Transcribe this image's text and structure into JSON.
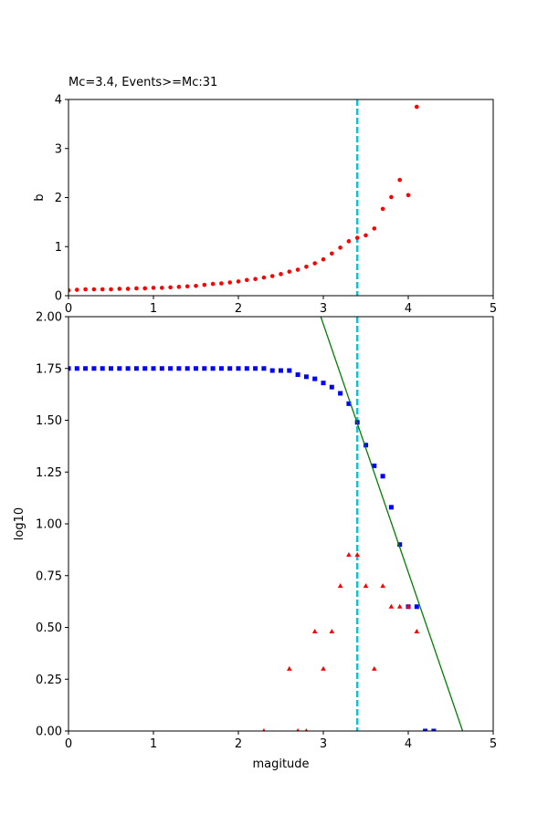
{
  "chart_data": [
    {
      "type": "scatter",
      "title": "Mc=3.4, Events>=Mc:31",
      "ylabel": "b",
      "xlim": [
        0,
        5
      ],
      "xticks": [
        0,
        1,
        2,
        3,
        4,
        5
      ],
      "ylim": [
        0,
        4
      ],
      "yticks": [
        0,
        1,
        2,
        3,
        4
      ],
      "vline": 3.4,
      "vline_color": "#17becf",
      "series": [
        {
          "marker": "circle",
          "color": "#ff0000",
          "x": [
            0,
            0.1,
            0.2,
            0.3,
            0.4,
            0.5,
            0.6,
            0.7,
            0.8,
            0.9,
            1.0,
            1.1,
            1.2,
            1.3,
            1.4,
            1.5,
            1.6,
            1.7,
            1.8,
            1.9,
            2.0,
            2.1,
            2.2,
            2.3,
            2.4,
            2.5,
            2.6,
            2.7,
            2.8,
            2.9,
            3.0,
            3.1,
            3.2,
            3.3,
            3.4,
            3.5,
            3.6,
            3.7,
            3.8,
            3.9,
            4.0,
            4.1
          ],
          "values": [
            0.11,
            0.12,
            0.13,
            0.13,
            0.13,
            0.13,
            0.14,
            0.14,
            0.15,
            0.15,
            0.16,
            0.16,
            0.17,
            0.18,
            0.19,
            0.2,
            0.22,
            0.24,
            0.25,
            0.27,
            0.29,
            0.32,
            0.34,
            0.37,
            0.4,
            0.44,
            0.49,
            0.53,
            0.59,
            0.66,
            0.74,
            0.86,
            0.98,
            1.11,
            1.18,
            1.23,
            1.37,
            1.77,
            2.01,
            2.36,
            2.05,
            3.85
          ]
        }
      ]
    },
    {
      "type": "scatter",
      "xlabel": "magitude",
      "ylabel": "log10",
      "xlim": [
        0,
        5
      ],
      "xticks": [
        0,
        1,
        2,
        3,
        4,
        5
      ],
      "ylim": [
        0,
        2
      ],
      "yticks": [
        {
          "value": 0,
          "label": "0.00"
        },
        {
          "value": 0.25,
          "label": "0.25"
        },
        {
          "value": 0.5,
          "label": "0.50"
        },
        {
          "value": 0.75,
          "label": "0.75"
        },
        {
          "value": 1,
          "label": "1.00"
        },
        {
          "value": 1.25,
          "label": "1.25"
        },
        {
          "value": 1.5,
          "label": "1.50"
        },
        {
          "value": 1.75,
          "label": "1.75"
        },
        {
          "value": 2,
          "label": "2.00"
        }
      ],
      "vline": 3.4,
      "vline_color": "#17becf",
      "series": [
        {
          "marker": "square",
          "color": "#0000ff",
          "x": [
            0,
            0.1,
            0.2,
            0.3,
            0.4,
            0.5,
            0.6,
            0.7,
            0.8,
            0.9,
            1.0,
            1.1,
            1.2,
            1.3,
            1.4,
            1.5,
            1.6,
            1.7,
            1.8,
            1.9,
            2.0,
            2.1,
            2.2,
            2.3,
            2.4,
            2.5,
            2.6,
            2.7,
            2.8,
            2.9,
            3.0,
            3.1,
            3.2,
            3.3,
            3.4,
            3.5,
            3.6,
            3.7,
            3.8,
            3.9,
            4.0,
            4.1,
            4.2,
            4.3
          ],
          "values": [
            1.75,
            1.75,
            1.75,
            1.75,
            1.75,
            1.75,
            1.75,
            1.75,
            1.75,
            1.75,
            1.75,
            1.75,
            1.75,
            1.75,
            1.75,
            1.75,
            1.75,
            1.75,
            1.75,
            1.75,
            1.75,
            1.75,
            1.75,
            1.75,
            1.74,
            1.74,
            1.74,
            1.72,
            1.71,
            1.7,
            1.68,
            1.66,
            1.63,
            1.58,
            1.49,
            1.38,
            1.28,
            1.23,
            1.08,
            0.9,
            0.6,
            0.6,
            0,
            0
          ]
        },
        {
          "marker": "triangle",
          "color": "#ff0000",
          "x": [
            2.3,
            2.6,
            2.7,
            2.8,
            2.9,
            3.0,
            3.1,
            3.2,
            3.3,
            3.4,
            3.5,
            3.6,
            3.7,
            3.8,
            3.9,
            4.0,
            4.1
          ],
          "values": [
            0,
            0.3,
            0,
            0,
            0.48,
            0.3,
            0.48,
            0.7,
            0.85,
            0.85,
            0.7,
            0.3,
            0.7,
            0.6,
            0.6,
            0.6,
            0.48
          ]
        },
        {
          "marker": "line",
          "color": "#008000",
          "x": [
            2.97,
            4.64
          ],
          "values": [
            2.0,
            0
          ]
        }
      ]
    }
  ]
}
